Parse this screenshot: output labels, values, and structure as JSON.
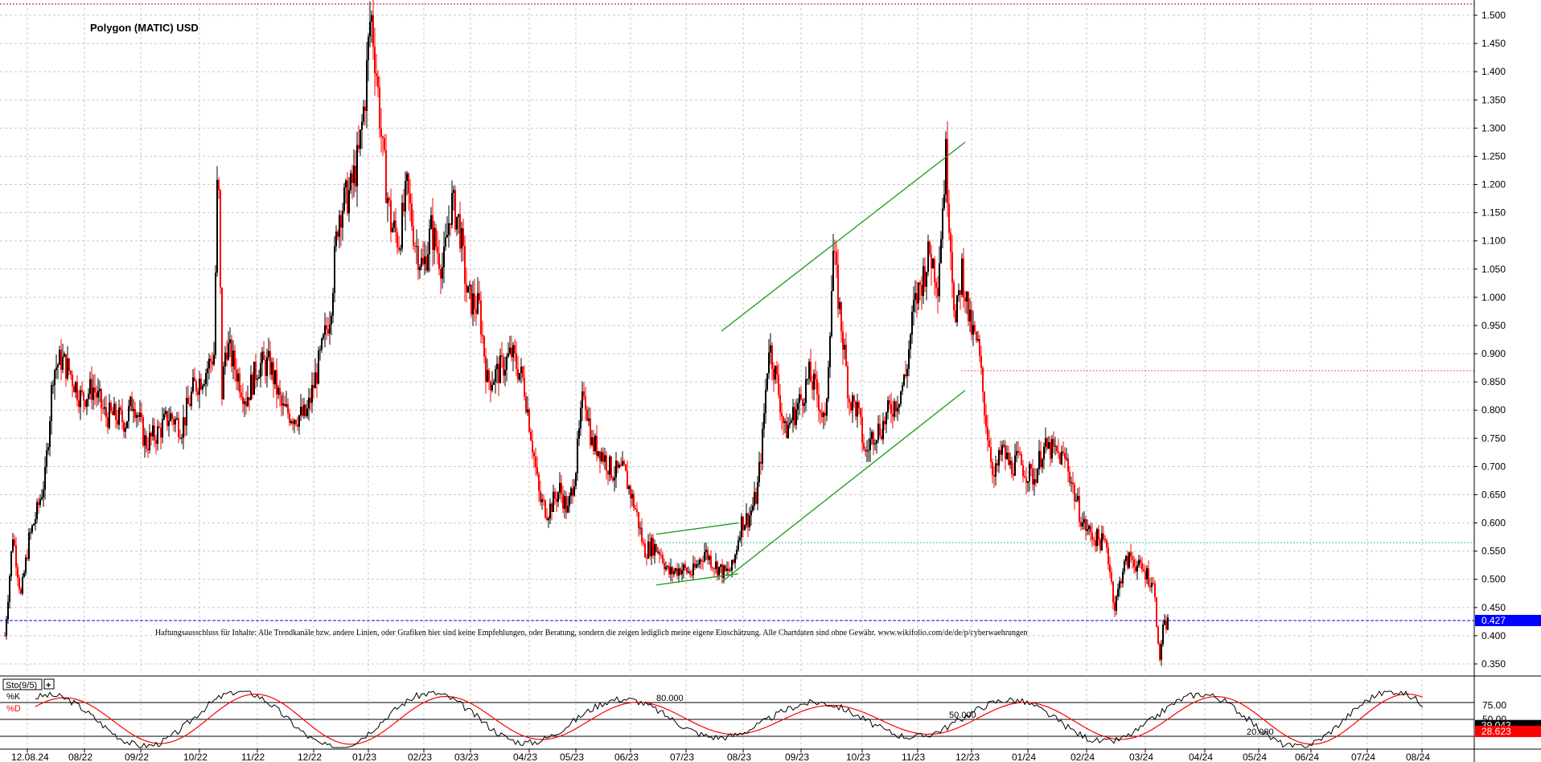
{
  "chart_data": [
    {
      "type": "candlestick",
      "title": "Polygon (MATIC) USD",
      "y_axis_ticks": [
        "1.500",
        "1.450",
        "1.400",
        "1.350",
        "1.300",
        "1.250",
        "1.200",
        "1.150",
        "1.100",
        "1.050",
        "1.000",
        "0.950",
        "0.900",
        "0.850",
        "0.800",
        "0.750",
        "0.700",
        "0.650",
        "0.600",
        "0.550",
        "0.500",
        "0.450",
        "0.400",
        "0.350"
      ],
      "ylim": [
        0.33,
        1.52
      ],
      "x_axis_ticks": [
        "12.08.24",
        "08/22",
        "09/22",
        "10/22",
        "11/22",
        "12/22",
        "01/23",
        "02/23",
        "03/23",
        "04/23",
        "05/23",
        "06/23",
        "07/23",
        "08/23",
        "09/23",
        "10/23",
        "11/23",
        "12/23",
        "01/24",
        "02/24",
        "03/24",
        "04/24",
        "05/24",
        "06/24",
        "07/24",
        "08/24"
      ],
      "last_price_label": "0.427",
      "last_price": 0.427,
      "grid": true,
      "up_color": "#000000",
      "down_color": "#ff0000",
      "anchor_closes": [
        [
          0,
          0.4
        ],
        [
          10,
          0.58
        ],
        [
          20,
          0.47
        ],
        [
          30,
          0.57
        ],
        [
          40,
          0.62
        ],
        [
          50,
          0.68
        ],
        [
          60,
          0.87
        ],
        [
          70,
          0.89
        ],
        [
          80,
          0.87
        ],
        [
          95,
          0.82
        ],
        [
          110,
          0.84
        ],
        [
          125,
          0.79
        ],
        [
          135,
          0.79
        ],
        [
          150,
          0.78
        ],
        [
          160,
          0.82
        ],
        [
          175,
          0.74
        ],
        [
          190,
          0.76
        ],
        [
          205,
          0.79
        ],
        [
          220,
          0.77
        ],
        [
          235,
          0.84
        ],
        [
          250,
          0.87
        ],
        [
          260,
          0.9
        ],
        [
          265,
          1.26
        ],
        [
          270,
          0.83
        ],
        [
          275,
          0.92
        ],
        [
          285,
          0.88
        ],
        [
          300,
          0.82
        ],
        [
          315,
          0.88
        ],
        [
          330,
          0.88
        ],
        [
          345,
          0.8
        ],
        [
          360,
          0.79
        ],
        [
          375,
          0.79
        ],
        [
          385,
          0.85
        ],
        [
          395,
          0.91
        ],
        [
          405,
          0.98
        ],
        [
          415,
          1.15
        ],
        [
          430,
          1.19
        ],
        [
          440,
          1.25
        ],
        [
          448,
          1.36
        ],
        [
          455,
          1.51
        ],
        [
          462,
          1.4
        ],
        [
          470,
          1.25
        ],
        [
          480,
          1.13
        ],
        [
          490,
          1.1
        ],
        [
          500,
          1.19
        ],
        [
          510,
          1.1
        ],
        [
          520,
          1.05
        ],
        [
          530,
          1.12
        ],
        [
          545,
          1.05
        ],
        [
          555,
          1.17
        ],
        [
          565,
          1.13
        ],
        [
          575,
          1.0
        ],
        [
          590,
          0.98
        ],
        [
          600,
          0.85
        ],
        [
          615,
          0.87
        ],
        [
          630,
          0.9
        ],
        [
          645,
          0.85
        ],
        [
          655,
          0.75
        ],
        [
          665,
          0.64
        ],
        [
          675,
          0.62
        ],
        [
          690,
          0.66
        ],
        [
          700,
          0.62
        ],
        [
          710,
          0.7
        ],
        [
          720,
          0.84
        ],
        [
          730,
          0.74
        ],
        [
          740,
          0.73
        ],
        [
          755,
          0.69
        ],
        [
          770,
          0.69
        ],
        [
          785,
          0.62
        ],
        [
          795,
          0.55
        ],
        [
          805,
          0.56
        ],
        [
          815,
          0.55
        ],
        [
          825,
          0.51
        ],
        [
          840,
          0.52
        ],
        [
          855,
          0.51
        ],
        [
          870,
          0.55
        ],
        [
          880,
          0.53
        ],
        [
          895,
          0.51
        ],
        [
          905,
          0.52
        ],
        [
          915,
          0.6
        ],
        [
          925,
          0.61
        ],
        [
          935,
          0.65
        ],
        [
          942,
          0.75
        ],
        [
          950,
          0.92
        ],
        [
          960,
          0.85
        ],
        [
          970,
          0.76
        ],
        [
          980,
          0.79
        ],
        [
          990,
          0.82
        ],
        [
          1000,
          0.86
        ],
        [
          1010,
          0.83
        ],
        [
          1020,
          0.77
        ],
        [
          1030,
          1.08
        ],
        [
          1040,
          0.95
        ],
        [
          1050,
          0.82
        ],
        [
          1060,
          0.8
        ],
        [
          1070,
          0.72
        ],
        [
          1080,
          0.76
        ],
        [
          1090,
          0.77
        ],
        [
          1100,
          0.8
        ],
        [
          1110,
          0.82
        ],
        [
          1120,
          0.86
        ],
        [
          1130,
          0.98
        ],
        [
          1140,
          1.03
        ],
        [
          1150,
          1.08
        ],
        [
          1160,
          1.03
        ],
        [
          1170,
          1.25
        ],
        [
          1175,
          1.12
        ],
        [
          1182,
          0.95
        ],
        [
          1190,
          1.05
        ],
        [
          1200,
          0.95
        ],
        [
          1210,
          0.91
        ],
        [
          1220,
          0.78
        ],
        [
          1230,
          0.68
        ],
        [
          1240,
          0.73
        ],
        [
          1250,
          0.7
        ],
        [
          1260,
          0.71
        ],
        [
          1270,
          0.69
        ],
        [
          1280,
          0.68
        ],
        [
          1290,
          0.73
        ],
        [
          1300,
          0.73
        ],
        [
          1310,
          0.72
        ],
        [
          1320,
          0.71
        ],
        [
          1330,
          0.65
        ],
        [
          1340,
          0.6
        ],
        [
          1350,
          0.58
        ],
        [
          1360,
          0.57
        ],
        [
          1370,
          0.56
        ],
        [
          1380,
          0.45
        ],
        [
          1390,
          0.52
        ],
        [
          1400,
          0.54
        ],
        [
          1410,
          0.52
        ],
        [
          1420,
          0.51
        ],
        [
          1430,
          0.48
        ],
        [
          1435,
          0.35
        ],
        [
          1440,
          0.41
        ],
        [
          1447,
          0.427
        ]
      ],
      "trend_lines": [
        {
          "from": [
            893,
            0.94
          ],
          "to": [
            1196,
            1.275
          ]
        },
        {
          "from": [
            893,
            0.495
          ],
          "to": [
            1196,
            0.835
          ]
        },
        {
          "from": [
            812,
            0.58
          ],
          "to": [
            914,
            0.6
          ]
        },
        {
          "from": [
            812,
            0.49
          ],
          "to": [
            914,
            0.51
          ]
        }
      ],
      "horizontal_levels": [
        {
          "value": 1.52,
          "color": "#cc0000",
          "style": "dotted"
        },
        {
          "value": 0.87,
          "color": "#e06060",
          "style": "dotted"
        },
        {
          "value": 0.565,
          "color": "#40c0a0",
          "style": "dotted"
        },
        {
          "value": 0.427,
          "color": "#0000ff",
          "style": "dashed"
        }
      ]
    },
    {
      "type": "line",
      "title": "Sto(9/5)",
      "series": [
        {
          "name": "%K",
          "color": "#000000"
        },
        {
          "name": "%D",
          "color": "#ff0000"
        }
      ],
      "ylim": [
        0,
        100
      ],
      "levels": [
        80,
        50,
        20
      ],
      "level_labels": [
        "80.000",
        "50.000",
        "20.000"
      ],
      "right_ticks": [
        "75.00",
        "50.00"
      ],
      "last_values": [
        "39.043",
        "28.623"
      ],
      "k_last": 39.043,
      "d_last": 28.623
    }
  ],
  "disclaimer": "Haftungsausschluss für Inhalte: Alle Trendkanäle bzw. andere Linien, oder Grafiken hier sind keine Empfehlungen, oder Beratung, sondern die zeigen lediglich meine eigene Einschätzung. Alle Chartdaten sind ohne Gewähr.  www.wikifolio.com/de/de/p/cyberwaehrungen",
  "indicator_label": "Sto(9/5)",
  "indicator_button": "+",
  "k_label": "%K",
  "d_label": "%D"
}
